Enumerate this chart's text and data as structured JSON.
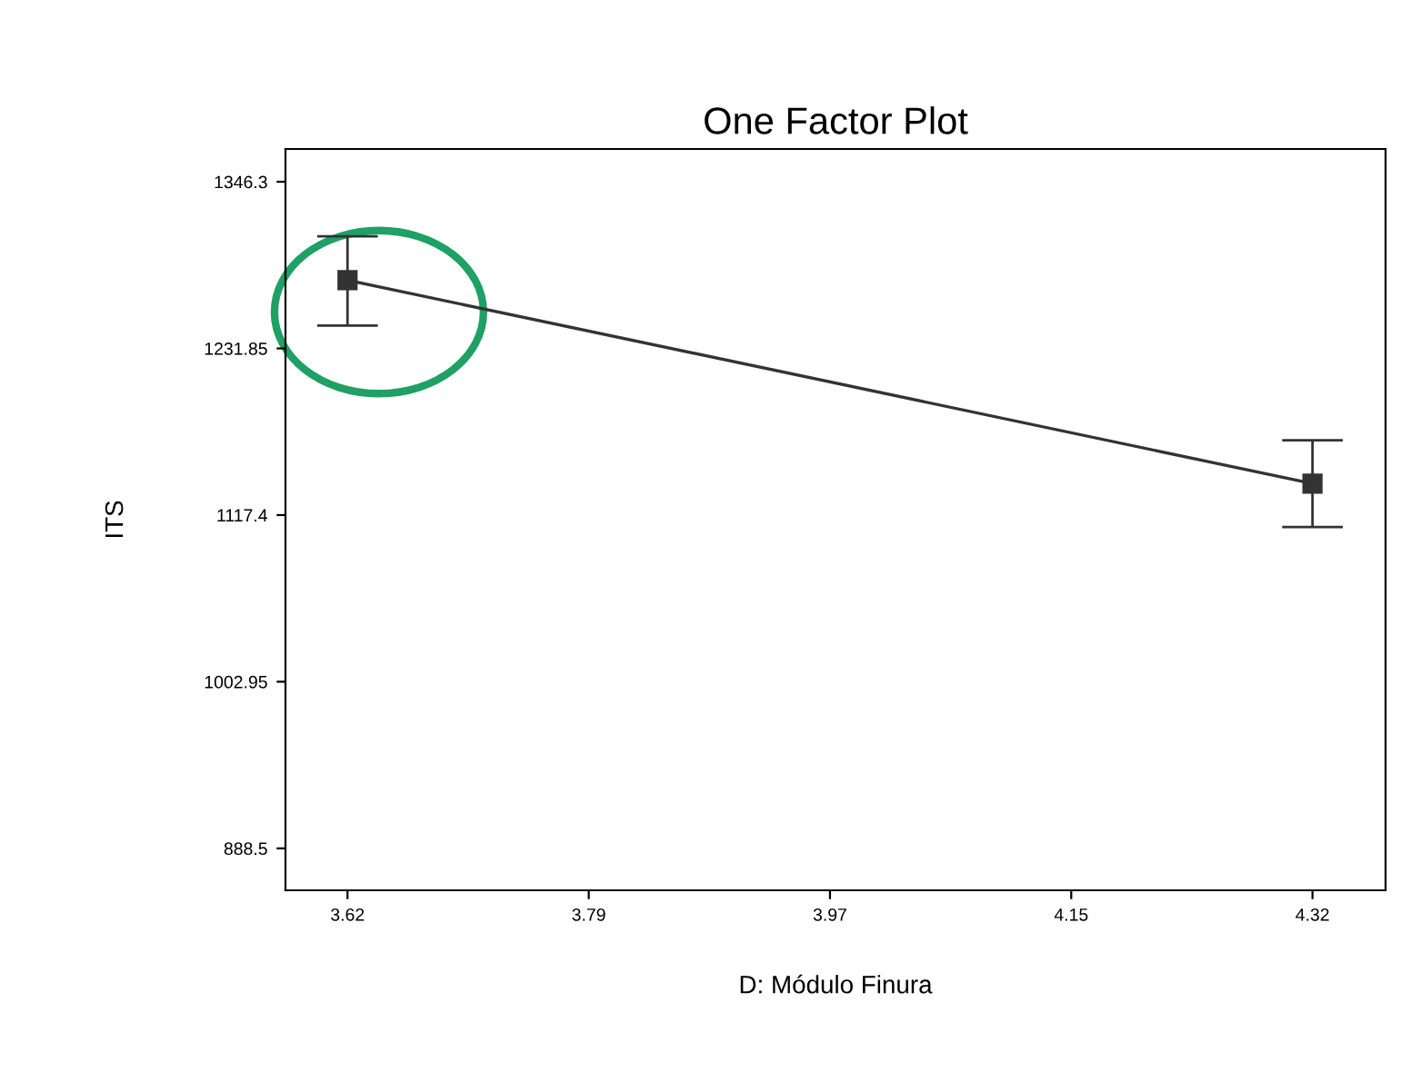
{
  "chart_data": {
    "type": "line",
    "title": "One Factor Plot",
    "xlabel": "D: Módulo Finura",
    "ylabel": "ITS",
    "x": [
      3.62,
      4.32
    ],
    "series": [
      {
        "color": "#333333",
        "values": [
          1278.7,
          1139.0
        ],
        "errors": [
          [
            1247.5,
            1308.8
          ],
          [
            1109.2,
            1168.7
          ]
        ]
      }
    ],
    "xlim": [
      3.575,
      4.373
    ],
    "ylim": [
      859.7,
      1368.8
    ],
    "xticks": [
      3.62,
      {
        "value": 3.795,
        "label": "3.79"
      },
      3.97,
      {
        "value": 4.145,
        "label": "4.15"
      },
      4.32
    ],
    "yticks": [
      888.5,
      1002.95,
      1117.4,
      1231.85,
      1346.3
    ],
    "marker": "square",
    "line_style": "solid",
    "grid": false,
    "legend": false
  }
}
